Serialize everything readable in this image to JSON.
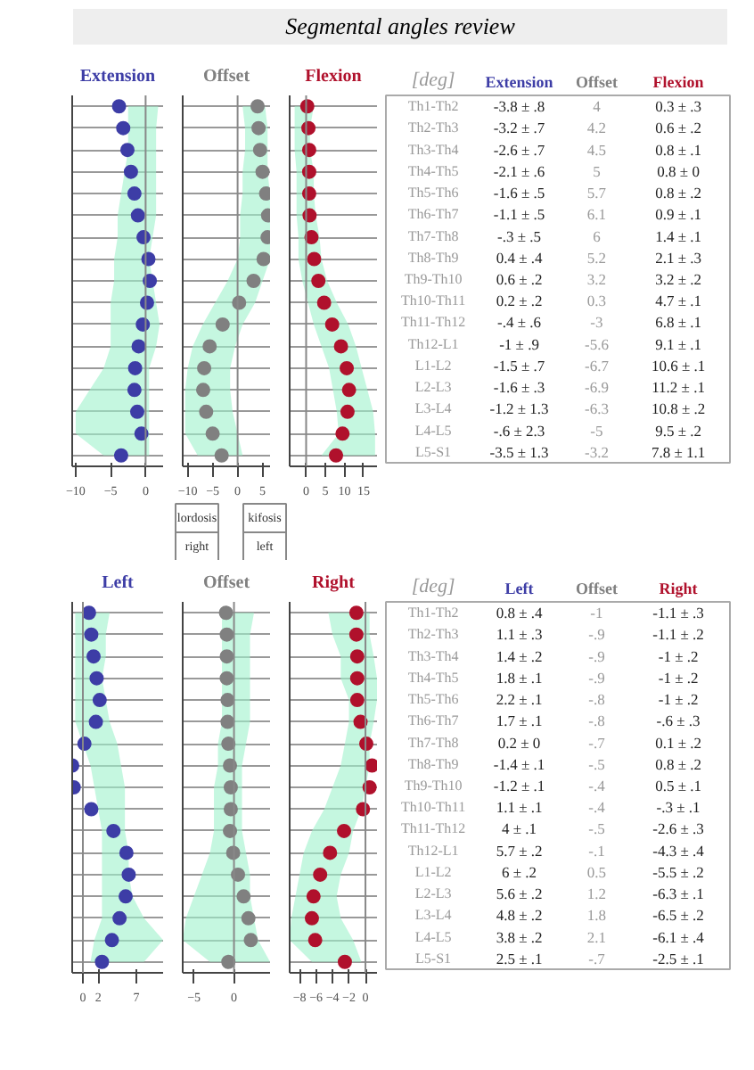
{
  "chart_data": [
    {
      "type": "scatter",
      "orientation": "horizontal",
      "title": "Extension",
      "ylabel": "[deg]",
      "annotations": [
        "Segmental angles review"
      ],
      "categories": [
        "Th1-Th2",
        "Th2-Th3",
        "Th3-Th4",
        "Th4-Th5",
        "Th5-Th6",
        "Th6-Th7",
        "Th7-Th8",
        "Th8-Th9",
        "Th9-Th10",
        "Th10-Th11",
        "Th11-Th12",
        "Th12-L1",
        "L1-L2",
        "L2-L3",
        "L3-L4",
        "L4-L5",
        "L5-S1"
      ],
      "series": [
        {
          "color": "#3d3da6",
          "values": [
            -3.8,
            -3.2,
            -2.6,
            -2.1,
            -1.6,
            -1.1,
            -0.3,
            0.4,
            0.6,
            0.2,
            -0.4,
            -1,
            -1.5,
            -1.6,
            -1.2,
            -0.6,
            -3.5
          ],
          "value_labels": [
            "-3.8 ± .8",
            "-3.2 ± .7",
            "-2.6 ± .7",
            "-2.1 ± .6",
            "-1.6 ± .5",
            "-1.1 ± .5",
            "-.3 ± .5",
            "0.4 ± .4",
            "0.6 ± .2",
            "0.2 ± .2",
            "-.4 ± .6",
            "-1 ± .9",
            "-1.5 ± .7",
            "-1.6 ± .3",
            "-1.2 ± 1.3",
            "-.6 ± 2.3",
            "-3.5 ± 1.3"
          ],
          "lower": [
            -2.5,
            -2.5,
            -2.5,
            -3,
            -3.5,
            -4,
            -4,
            -4.5,
            -4.5,
            -5,
            -5,
            -5,
            -6,
            -8,
            -10,
            -10,
            -6
          ],
          "upper": [
            1.8,
            1.5,
            1.5,
            1.5,
            1.5,
            1.5,
            1,
            0.5,
            1,
            1.5,
            2,
            1.5,
            0.5,
            0.5,
            0.5,
            0.5,
            0.5
          ]
        }
      ],
      "xlim": [
        -10.5,
        2.5
      ],
      "xticks": [
        -10,
        -5,
        0
      ],
      "tick_labels": "x",
      "grid": "y",
      "marker": "circle",
      "ref_lines": [
        {
          "axis": "x",
          "value": 0
        }
      ]
    },
    {
      "type": "scatter",
      "orientation": "horizontal",
      "title": "Offset",
      "annotations": [
        "lordosis",
        "kifosis"
      ],
      "series": [
        {
          "color": "#808080",
          "values": [
            4,
            4.2,
            4.5,
            5,
            5.7,
            6.1,
            6,
            5.2,
            3.2,
            0.3,
            -3,
            -5.6,
            -6.7,
            -6.9,
            -6.3,
            -5,
            -3.2
          ],
          "value_labels": [
            "4",
            "4.2",
            "4.5",
            "5",
            "5.7",
            "6.1",
            "6",
            "5.2",
            "3.2",
            "0.3",
            "-3",
            "-5.6",
            "-6.7",
            "-6.9",
            "-6.3",
            "-5",
            "-3.2"
          ],
          "lower": [
            1,
            1.5,
            1.5,
            1,
            1,
            0.5,
            0.5,
            0,
            -2,
            -4.5,
            -7,
            -9,
            -10,
            -10.5,
            -10.5,
            -10.5,
            -8
          ],
          "upper": [
            5.5,
            6,
            6,
            6,
            6.5,
            6.5,
            6.5,
            6.5,
            5,
            3.5,
            1,
            -0.5,
            -1.5,
            -1.5,
            -1,
            0,
            1
          ]
        }
      ],
      "xlim": [
        -11,
        6.5
      ],
      "xticks": [
        -10,
        -5,
        0,
        5
      ],
      "tick_labels": "x",
      "grid": "y",
      "marker": "circle",
      "ref_lines": [
        {
          "axis": "x",
          "value": 0
        }
      ]
    },
    {
      "type": "scatter",
      "orientation": "horizontal",
      "title": "Flexion",
      "series": [
        {
          "color": "#b0112c",
          "values": [
            0.3,
            0.6,
            0.8,
            0.8,
            0.8,
            0.9,
            1.4,
            2.1,
            3.2,
            4.7,
            6.8,
            9.1,
            10.6,
            11.2,
            10.8,
            9.5,
            7.8
          ],
          "value_labels": [
            "0.3 ± .3",
            "0.6 ± .2",
            "0.8 ± .1",
            "0.8 ± 0",
            "0.8 ± .2",
            "0.9 ± .1",
            "1.4 ± .1",
            "2.1 ± .3",
            "3.2 ± .2",
            "4.7 ± .1",
            "6.8 ± .1",
            "9.1 ± .1",
            "10.6 ± .1",
            "11.2 ± .1",
            "10.8 ± .2",
            "9.5 ± .2",
            "7.8 ± 1.1"
          ],
          "lower": [
            -3,
            -3,
            -3,
            -2.5,
            -2.5,
            -2.5,
            -2,
            -2,
            -1,
            0.5,
            2,
            4,
            6,
            7,
            8,
            8.5,
            4
          ],
          "upper": [
            2,
            1,
            1,
            2,
            2,
            2.5,
            3.5,
            4,
            5.5,
            8,
            11,
            13,
            14.5,
            16,
            17.5,
            18,
            18
          ]
        }
      ],
      "xlim": [
        -4.3,
        18.5
      ],
      "xticks": [
        0,
        5,
        10,
        15
      ],
      "tick_labels": "x",
      "grid": "y",
      "marker": "circle",
      "ref_lines": [
        {
          "axis": "x",
          "value": 0
        }
      ]
    },
    {
      "type": "scatter",
      "orientation": "horizontal",
      "title": "Left",
      "ylabel": "[deg]",
      "categories": [
        "Th1-Th2",
        "Th2-Th3",
        "Th3-Th4",
        "Th4-Th5",
        "Th5-Th6",
        "Th6-Th7",
        "Th7-Th8",
        "Th8-Th9",
        "Th9-Th10",
        "Th10-Th11",
        "Th11-Th12",
        "Th12-L1",
        "L1-L2",
        "L2-L3",
        "L3-L4",
        "L4-L5",
        "L5-S1"
      ],
      "series": [
        {
          "color": "#3d3da6",
          "values": [
            0.8,
            1.1,
            1.4,
            1.8,
            2.2,
            1.7,
            0.2,
            -1.4,
            -1.2,
            1.1,
            4,
            5.7,
            6,
            5.6,
            4.8,
            3.8,
            2.5
          ],
          "value_labels": [
            "0.8 ± .4",
            "1.1 ± .3",
            "1.4 ± .2",
            "1.8 ± .1",
            "2.2 ± .1",
            "1.7 ± .1",
            "0.2 ± 0",
            "-1.4 ± .1",
            "-1.2 ± .1",
            "1.1 ± .1",
            "4 ± .1",
            "5.7 ± .2",
            "6 ± .2",
            "5.6 ± .2",
            "4.8 ± .2",
            "3.8 ± .2",
            "2.5 ± .1"
          ],
          "lower": [
            -1,
            -1,
            -1,
            -1,
            -1,
            -1,
            0,
            1,
            1.5,
            2,
            2.5,
            2.5,
            2.5,
            2.5,
            2.5,
            1.5,
            1
          ],
          "upper": [
            3.5,
            3,
            3,
            2.5,
            3,
            3.5,
            4.5,
            5,
            5.5,
            5.5,
            5.5,
            6,
            6,
            6.5,
            8,
            10.5,
            8
          ]
        }
      ],
      "xlim": [
        -1.4,
        10.5
      ],
      "xticks": [
        0,
        2,
        7
      ],
      "tick_labels": "x",
      "grid": "y",
      "marker": "circle",
      "ref_lines": [
        {
          "axis": "x",
          "value": 0
        }
      ]
    },
    {
      "type": "scatter",
      "orientation": "horizontal",
      "title": "Offset",
      "annotations": [
        "right",
        "left"
      ],
      "series": [
        {
          "color": "#808080",
          "values": [
            -1,
            -0.9,
            -0.9,
            -0.9,
            -0.8,
            -0.8,
            -0.7,
            -0.5,
            -0.4,
            -0.4,
            -0.5,
            -0.1,
            0.5,
            1.2,
            1.8,
            2.1,
            -0.7
          ],
          "value_labels": [
            "-1",
            "-.9",
            "-.9",
            "-.9",
            "-.8",
            "-.8",
            "-.7",
            "-.5",
            "-.4",
            "-.4",
            "-.5",
            "-.1",
            "0.5",
            "1.2",
            "1.8",
            "2.1",
            "-.7"
          ],
          "lower": [
            -1.5,
            -1.5,
            -1.5,
            -1.5,
            -1.5,
            -1.5,
            -2,
            -2,
            -2.5,
            -2.5,
            -2.5,
            -3,
            -4,
            -5,
            -6,
            -6.4,
            -3
          ],
          "upper": [
            2.5,
            2,
            2,
            2,
            2,
            2,
            1.5,
            1,
            1,
            1,
            1,
            1.5,
            2,
            2,
            2.5,
            3,
            4.5
          ]
        }
      ],
      "xlim": [
        -6.4,
        4.5
      ],
      "xticks": [
        -5,
        0
      ],
      "tick_labels": "x",
      "grid": "y",
      "marker": "circle",
      "ref_lines": [
        {
          "axis": "x",
          "value": 0
        }
      ]
    },
    {
      "type": "scatter",
      "orientation": "horizontal",
      "title": "Right",
      "series": [
        {
          "color": "#b0112c",
          "values": [
            -1.1,
            -1.1,
            -1,
            -1,
            -1,
            -0.6,
            0.1,
            0.8,
            0.5,
            -0.3,
            -2.6,
            -4.3,
            -5.5,
            -6.3,
            -6.5,
            -6.1,
            -2.5
          ],
          "value_labels": [
            "-1.1 ± .3",
            "-1.1 ± .2",
            "-1 ± .2",
            "-1 ± .2",
            "-1 ± .2",
            "-.6 ± .3",
            "0.1 ± .2",
            "0.8 ± .2",
            "0.5 ± .1",
            "-.3 ± .1",
            "-2.6 ± .3",
            "-4.3 ± .4",
            "-5.5 ± .2",
            "-6.3 ± .1",
            "-6.5 ± .2",
            "-6.1 ± .4",
            "-2.5 ± .1"
          ],
          "lower": [
            -4.5,
            -4,
            -3,
            -3,
            -2,
            -2,
            -2.5,
            -3,
            -4,
            -5,
            -6.5,
            -7.5,
            -8,
            -8.5,
            -9,
            -9.2,
            -6.5
          ],
          "upper": [
            0.5,
            0.5,
            1,
            1.4,
            1.4,
            1,
            0.5,
            0.5,
            0,
            -0.5,
            -1.5,
            -2,
            -3,
            -3.5,
            -3,
            -1.5,
            -0.5
          ]
        }
      ],
      "xlim": [
        -9.2,
        1.4
      ],
      "xticks": [
        -8,
        -6,
        -4,
        -2,
        0
      ],
      "tick_labels": "x",
      "grid": "y",
      "marker": "circle",
      "ref_lines": [
        {
          "axis": "x",
          "value": 0
        }
      ]
    }
  ]
}
